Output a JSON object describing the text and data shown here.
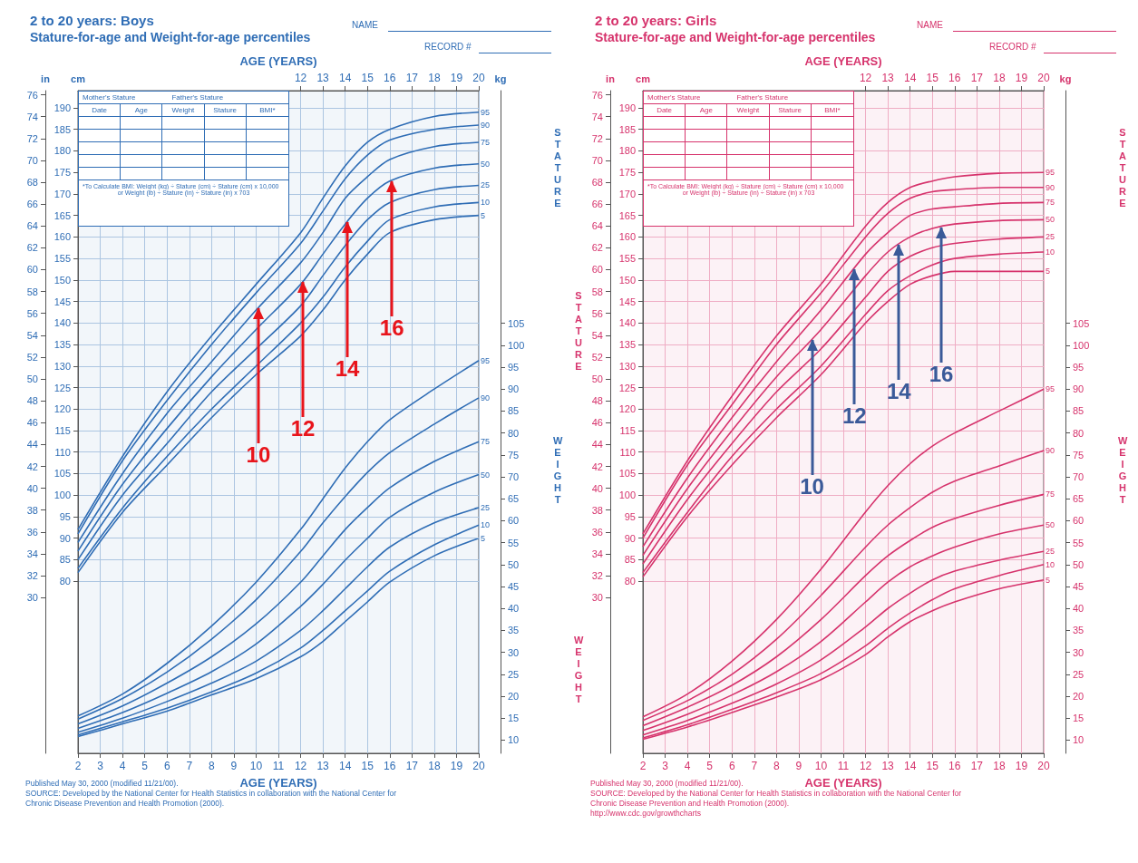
{
  "chart_data": [
    {
      "type": "line",
      "title": "2 to 20 years: Boys",
      "subtitle": "Stature-for-age and Weight-for-age percentiles",
      "xlabel": "AGE (YEARS)",
      "x2label": "AGE (YEARS)",
      "ylabel": "cm",
      "y2label": "kg",
      "y3label": "in",
      "grid": true,
      "x": [
        2,
        4,
        6,
        8,
        10,
        12,
        13,
        14,
        15,
        16,
        18,
        20
      ],
      "xlim": [
        2,
        20
      ],
      "xticks": [
        2,
        3,
        4,
        5,
        6,
        7,
        8,
        9,
        10,
        11,
        12,
        13,
        14,
        15,
        16,
        17,
        18,
        19,
        20
      ],
      "x2lim": [
        2,
        20
      ],
      "x2ticks": [
        12,
        13,
        14,
        15,
        16,
        17,
        18,
        19,
        20
      ],
      "ylim": [
        40,
        194
      ],
      "yticks": [
        80,
        85,
        90,
        95,
        100,
        105,
        110,
        115,
        120,
        125,
        130,
        135,
        140,
        145,
        150,
        155,
        160,
        165,
        170,
        175,
        180,
        185,
        190
      ],
      "y2lim": [
        7,
        158
      ],
      "y2ticks": [
        10,
        15,
        20,
        25,
        30,
        35,
        40,
        45,
        50,
        55,
        60,
        65,
        70,
        75,
        80,
        85,
        90,
        95,
        100,
        105
      ],
      "y3lim": [
        15.75,
        76.38
      ],
      "y3ticks": [
        30,
        32,
        34,
        36,
        38,
        40,
        42,
        44,
        46,
        48,
        50,
        52,
        54,
        56,
        58,
        60,
        62,
        64,
        66,
        68,
        70,
        72,
        74,
        76
      ],
      "series": [
        {
          "name": "95",
          "color": "#2f6db5",
          "axis": "y",
          "values": [
            92,
            109,
            124,
            137,
            149,
            161,
            169,
            176.5,
            182,
            185,
            188,
            189
          ]
        },
        {
          "name": "90",
          "color": "#2f6db5",
          "axis": "y",
          "values": [
            91,
            108,
            122,
            135,
            147,
            158.5,
            166,
            173.5,
            179,
            182.5,
            185,
            186
          ]
        },
        {
          "name": "75",
          "color": "#2f6db5",
          "axis": "y",
          "values": [
            89,
            105,
            119,
            131,
            143,
            154,
            161,
            169,
            174,
            178,
            181,
            182
          ]
        },
        {
          "name": "50",
          "color": "#2f6db5",
          "axis": "y",
          "values": [
            87,
            102.5,
            115.5,
            127.5,
            138.5,
            149,
            156,
            163,
            169,
            173,
            176,
            177
          ]
        },
        {
          "name": "25",
          "color": "#2f6db5",
          "axis": "y",
          "values": [
            85,
            100,
            112,
            124,
            134,
            144,
            151,
            158,
            164,
            168,
            171,
            172
          ]
        },
        {
          "name": "10",
          "color": "#2f6db5",
          "axis": "y",
          "values": [
            83,
            97,
            109,
            120,
            130,
            140,
            146,
            153,
            159,
            164,
            167,
            168
          ]
        },
        {
          "name": "5",
          "color": "#2f6db5",
          "axis": "y",
          "values": [
            82,
            96,
            107,
            118,
            128,
            137,
            143,
            150,
            156,
            161,
            164,
            165
          ]
        },
        {
          "name": "95",
          "color": "#2f6db5",
          "axis": "y2",
          "values": [
            15.5,
            20.5,
            27.5,
            36,
            46,
            58,
            65,
            72,
            78,
            83,
            90,
            96.5
          ]
        },
        {
          "name": "90",
          "color": "#2f6db5",
          "axis": "y2",
          "values": [
            14.8,
            19.5,
            25.5,
            33,
            42,
            53,
            59.5,
            65.5,
            71,
            75.5,
            82,
            88
          ]
        },
        {
          "name": "75",
          "color": "#2f6db5",
          "axis": "y2",
          "values": [
            13.7,
            17.8,
            23,
            29,
            36.5,
            46,
            52,
            58,
            63,
            67.5,
            73.5,
            78
          ]
        },
        {
          "name": "50",
          "color": "#2f6db5",
          "axis": "y2",
          "values": [
            12.7,
            16.3,
            20.7,
            25.6,
            31.9,
            40.5,
            45.5,
            51,
            56,
            60.8,
            66.5,
            70.5
          ]
        },
        {
          "name": "25",
          "color": "#2f6db5",
          "axis": "y2",
          "values": [
            11.8,
            15,
            18.8,
            23,
            28,
            35,
            39.5,
            44.5,
            49.5,
            54,
            59.5,
            63
          ]
        },
        {
          "name": "10",
          "color": "#2f6db5",
          "axis": "y2",
          "values": [
            11.2,
            14.2,
            17.3,
            21,
            25.3,
            31,
            35,
            39.5,
            44,
            48.5,
            54.5,
            59
          ]
        },
        {
          "name": "5",
          "color": "#2f6db5",
          "axis": "y2",
          "values": [
            10.8,
            13.7,
            16.6,
            20.3,
            24,
            29,
            32.5,
            37,
            41.5,
            46,
            52,
            56
          ]
        }
      ],
      "annotations": [
        "NAME",
        "RECORD #",
        "Mother's Stature",
        "Father's Stature",
        "Date",
        "Age",
        "Weight",
        "Stature",
        "BMI*",
        "*To Calculate BMI: Weight (kg) ÷ Stature (cm) ÷ Stature (cm) x 10,000",
        "or Weight (lb) ÷ Stature (in) ÷ Stature (in) x 703",
        "STATURE",
        "WEIGHT",
        "Published May 30, 2000 (modified 11/21/00).",
        "SOURCE: Developed by the National Center for Health Statistics in collaboration with the National Center for Chronic Disease Prevention and Health Promotion (2000).",
        {
          "text": "10",
          "x": 10.1,
          "y": 143.6
        },
        {
          "text": "12",
          "x": 12.1,
          "y": 149.7
        },
        {
          "text": "14",
          "x": 14.1,
          "y": 163.6
        },
        {
          "text": "16",
          "x": 16.1,
          "y": 173.2
        }
      ]
    },
    {
      "type": "line",
      "title": "2 to 20 years: Girls",
      "subtitle": "Stature-for-age and Weight-for-age percentiles",
      "xlabel": "AGE (YEARS)",
      "x2label": "AGE (YEARS)",
      "ylabel": "cm",
      "y2label": "kg",
      "y3label": "in",
      "grid": true,
      "x": [
        2,
        4,
        6,
        8,
        10,
        12,
        13,
        14,
        15,
        16,
        18,
        20
      ],
      "xlim": [
        2,
        20
      ],
      "xticks": [
        2,
        3,
        4,
        5,
        6,
        7,
        8,
        9,
        10,
        11,
        12,
        13,
        14,
        15,
        16,
        17,
        18,
        19,
        20
      ],
      "x2lim": [
        2,
        20
      ],
      "x2ticks": [
        12,
        13,
        14,
        15,
        16,
        17,
        18,
        19,
        20
      ],
      "ylim": [
        40,
        194
      ],
      "yticks": [
        80,
        85,
        90,
        95,
        100,
        105,
        110,
        115,
        120,
        125,
        130,
        135,
        140,
        145,
        150,
        155,
        160,
        165,
        170,
        175,
        180,
        185,
        190
      ],
      "y2lim": [
        7,
        158
      ],
      "y2ticks": [
        10,
        15,
        20,
        25,
        30,
        35,
        40,
        45,
        50,
        55,
        60,
        65,
        70,
        75,
        80,
        85,
        90,
        95,
        100,
        105
      ],
      "y3lim": [
        15.75,
        76.38
      ],
      "y3ticks": [
        30,
        32,
        34,
        36,
        38,
        40,
        42,
        44,
        46,
        48,
        50,
        52,
        54,
        56,
        58,
        60,
        62,
        64,
        66,
        68,
        70,
        72,
        74,
        76
      ],
      "series": [
        {
          "name": "95",
          "color": "#d6336c",
          "axis": "y",
          "values": [
            91,
            108,
            123,
            137,
            149,
            162.5,
            168,
            171.5,
            173,
            174,
            174.8,
            175
          ]
        },
        {
          "name": "90",
          "color": "#d6336c",
          "axis": "y",
          "values": [
            90,
            107,
            121,
            135,
            147,
            160,
            165.5,
            169,
            170.5,
            171,
            171.5,
            171.5
          ]
        },
        {
          "name": "75",
          "color": "#d6336c",
          "axis": "y",
          "values": [
            88,
            104,
            118,
            131,
            143,
            156,
            161,
            165,
            166.5,
            167,
            167.8,
            168
          ]
        },
        {
          "name": "50",
          "color": "#d6336c",
          "axis": "y",
          "values": [
            86,
            101.5,
            115,
            127.5,
            138.5,
            151,
            156.5,
            160,
            162,
            163,
            163.8,
            164
          ]
        },
        {
          "name": "25",
          "color": "#d6336c",
          "axis": "y",
          "values": [
            84,
            99,
            112,
            124,
            134,
            146,
            152,
            155.5,
            157.5,
            158.5,
            159.5,
            160
          ]
        },
        {
          "name": "10",
          "color": "#d6336c",
          "axis": "y",
          "values": [
            82,
            96,
            109,
            120,
            130,
            142,
            147.5,
            151,
            153.5,
            155,
            156,
            156.5
          ]
        },
        {
          "name": "5",
          "color": "#d6336c",
          "axis": "y",
          "values": [
            81,
            95,
            107,
            118,
            128,
            140,
            145,
            149,
            151,
            152,
            152,
            152
          ]
        },
        {
          "name": "95",
          "color": "#d6336c",
          "axis": "y2",
          "values": [
            15.3,
            20.5,
            28,
            37.5,
            49,
            62,
            68,
            73,
            77,
            80,
            85,
            90
          ]
        },
        {
          "name": "90",
          "color": "#d6336c",
          "axis": "y2",
          "values": [
            14.5,
            19,
            25,
            33,
            43,
            54,
            59,
            63,
            66.5,
            69,
            72.5,
            76
          ]
        },
        {
          "name": "75",
          "color": "#d6336c",
          "axis": "y2",
          "values": [
            13.3,
            17.5,
            22.5,
            29,
            37.5,
            47.5,
            52,
            55.5,
            58.5,
            60.5,
            63.5,
            66
          ]
        },
        {
          "name": "50",
          "color": "#d6336c",
          "axis": "y2",
          "values": [
            12.2,
            15.9,
            20.3,
            25.6,
            32.5,
            41.5,
            46,
            49.5,
            52,
            54,
            57,
            59
          ]
        },
        {
          "name": "25",
          "color": "#d6336c",
          "axis": "y2",
          "values": [
            11.2,
            14.5,
            18.4,
            22.8,
            28.3,
            35.8,
            40,
            43.5,
            46.5,
            48.5,
            51,
            53
          ]
        },
        {
          "name": "10",
          "color": "#d6336c",
          "axis": "y2",
          "values": [
            10.5,
            13.5,
            17,
            20.8,
            25.2,
            31.5,
            35.5,
            39,
            42,
            44.5,
            47.5,
            50
          ]
        },
        {
          "name": "5",
          "color": "#d6336c",
          "axis": "y2",
          "values": [
            10.2,
            13,
            16.3,
            19.8,
            23.8,
            29.5,
            33.5,
            37,
            39.5,
            41.5,
            44.5,
            46.5
          ]
        }
      ],
      "annotations": [
        "NAME",
        "RECORD #",
        "Mother's Stature",
        "Father's Stature",
        "Date",
        "Age",
        "Weight",
        "Stature",
        "BMI*",
        "*To Calculate BMI: Weight (kg) ÷ Stature (cm) ÷ Stature (cm) x 10,000",
        "or Weight (lb) ÷ Stature (in) ÷ Stature (in) x 703",
        "STATURE",
        "WEIGHT",
        "Published May 30, 2000 (modified 11/21/00).",
        "SOURCE: Developed by the National Center for Health Statistics in collaboration with the National Center for Chronic Disease Prevention and Health Promotion (2000).",
        "http://www.cdc.gov/growthcharts",
        "STATURE",
        "WEIGHT",
        {
          "text": "10",
          "x": 9.6,
          "y": 136.3
        },
        {
          "text": "12",
          "x": 11.5,
          "y": 152.7
        },
        {
          "text": "14",
          "x": 13.5,
          "y": 158.3
        },
        {
          "text": "16",
          "x": 15.4,
          "y": 162.4
        }
      ]
    }
  ]
}
